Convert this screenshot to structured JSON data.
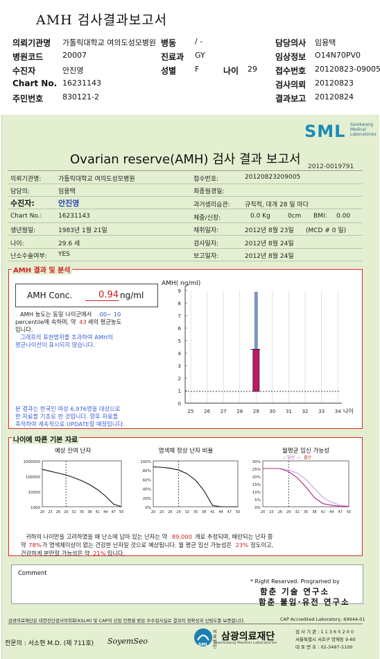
{
  "slip": {
    "title": "AMH 검사결과보고서",
    "rows": [
      {
        "l1": "의뢰기관명",
        "v1": "가톨릭대학교 여의도성모병원",
        "l2": "병동",
        "v2": "/ -",
        "l3": "",
        "v3": "",
        "l4": "담당의사",
        "v4": "임용택"
      },
      {
        "l1": "병원코드",
        "v1": "20007",
        "l2": "진료과",
        "v2": "GY",
        "l3": "",
        "v3": "",
        "l4": "임상정보",
        "v4": "O14N70PV0"
      },
      {
        "l1": "수진자",
        "v1": "안진영",
        "l2": "성별",
        "v2": "F",
        "l3": "나이",
        "v3": "29",
        "l4": "접수번호",
        "v4": "20120823-09005"
      },
      {
        "l1": "Chart No.",
        "v1": "16231143",
        "l2": "",
        "v2": "",
        "l3": "",
        "v3": "",
        "l4": "검사의뢰",
        "v4": "20120823"
      },
      {
        "l1": "주민번호",
        "v1": "830121-2",
        "l2": "",
        "v2": "",
        "l3": "",
        "v3": "",
        "l4": "결과보고",
        "v4": "20120824"
      }
    ]
  },
  "report": {
    "logo": "SML",
    "logo_sub": [
      "Samkwang",
      "Medical",
      "Laboratories"
    ],
    "title": "Ovarian reserve(AMH) 검사 결과 보고서",
    "doc_no": "2012-0019791",
    "patient_left": [
      {
        "label": "의뢰기관명:",
        "value": "가톨릭대학교 여의도성모병원",
        "big": false
      },
      {
        "label": "담당의:",
        "value": "임용택",
        "big": false
      },
      {
        "label": "수진자:",
        "value": "안진영",
        "big": true
      },
      {
        "label": "Chart No.:",
        "value": "16231143",
        "big": false
      },
      {
        "label": "생년월일:",
        "value": "1983년 1월 21일",
        "big": false
      },
      {
        "label": "나이:",
        "value": "29.6 세",
        "big": false
      },
      {
        "label": "난소수술여부:",
        "value": "YES",
        "big": false
      }
    ],
    "patient_right": {
      "receipt_label": "접수번호:",
      "receipt_value": "20120823209005",
      "final_menses_label": "최종월경일:",
      "final_menses_value": "",
      "cycle_label": "과거생리습관:",
      "cycle_value": "규칙적, 대개  28 일 마다",
      "body_label": "체중/신장:",
      "weight": "0.0 Kg",
      "height": "0cm",
      "bmi_label": "BMI:",
      "bmi": "0.00",
      "collect_label": "채취일자:",
      "collect_value": "2012년 8월 23일",
      "mcd": "(MCD #  0 일)",
      "test_label": "검사일자:",
      "test_value": "2012년 8월 24일",
      "report_label": "보고일자:",
      "report_value": "2012년 8월 24일"
    }
  },
  "amh_section": {
    "title": "AMH 결과 및 분석",
    "conc_label": "AMH Conc.",
    "conc_value": "0.94",
    "conc_unit": "ng/ml",
    "desc1_a": "AMH 농도는 동일 나이군에서",
    "desc1_range": ".00~  10",
    "desc2_a": "percentile에 속하며, 약",
    "desc2_age": "43",
    "desc2_b": "세의 평균농도",
    "desc3": "입니다.",
    "desc4": "그래프의 표현범위를 초과하여 AMH의",
    "desc5": "평균나이선이 표시되지 않습니다.",
    "note1": "본 결과는 한국인 여성 6,976명을 대상으로",
    "note2": "한 자료를 기초로 한 것입니다. 향후 자료를",
    "note3": "축적하여 계속적으로 UPDATE할 예정입니다."
  },
  "chart_data": [
    {
      "type": "bar",
      "title": "",
      "ylabel": "AMH( ng/ml)",
      "xlabel": "나이",
      "x": [
        25,
        26,
        27,
        28,
        29,
        30,
        31,
        32,
        33,
        34
      ],
      "ylim": [
        0,
        9
      ],
      "yticks": [
        0,
        1,
        2,
        3,
        4,
        5,
        6,
        7,
        8,
        9
      ],
      "bars": [
        {
          "x": 29,
          "low": 0.94,
          "high": 4.3,
          "color": "#c2186b"
        },
        {
          "x": 29,
          "low": 4.3,
          "high": 8.9,
          "color": "#7f93c4"
        }
      ],
      "reference_line": 0.94,
      "grid": true
    },
    {
      "type": "line",
      "title": "예상 잔여 난자",
      "x": [
        20,
        23,
        26,
        29,
        32,
        35,
        38,
        41,
        44,
        47,
        50
      ],
      "yscale": "log",
      "ylim": [
        1000,
        1000000
      ],
      "yticks": [
        "1000000",
        "100000",
        "10000",
        "1000"
      ],
      "series": [
        {
          "values": [
            280000,
            210000,
            160000,
            120000,
            80000,
            50000,
            28000,
            13000,
            5000,
            1500,
            1000
          ]
        }
      ],
      "marker_x": 29
    },
    {
      "type": "line",
      "title": "염색체 정상 난자 비율",
      "x": [
        20,
        23,
        26,
        29,
        32,
        35,
        38,
        41,
        44,
        47,
        50
      ],
      "ylim": [
        0,
        100
      ],
      "yticks": [
        "100%",
        "80%",
        "60%",
        "40%",
        "20%",
        "0%"
      ],
      "series": [
        {
          "values": [
            87,
            86,
            84,
            80,
            72,
            58,
            35,
            3,
            0,
            0,
            0
          ]
        }
      ],
      "marker_x": 29
    },
    {
      "type": "line",
      "title": "월평균 임신 가능성",
      "legend": [
        "임신",
        "출산"
      ],
      "x": [
        20,
        23,
        26,
        29,
        32,
        35,
        38,
        41,
        44,
        47,
        50
      ],
      "ylim": [
        0,
        30
      ],
      "yticks": [
        "30%",
        "25%",
        "20%",
        "15%",
        "10%",
        "5%",
        "0%"
      ],
      "series": [
        {
          "name": "임신",
          "values": [
            25,
            25,
            25,
            24,
            22,
            18,
            12,
            6,
            3,
            1,
            0.5
          ]
        },
        {
          "name": "출산",
          "values": [
            25,
            25,
            25,
            23,
            19,
            13,
            6,
            2,
            1,
            0.3,
            0.1
          ]
        }
      ],
      "marker_x": 29
    }
  ],
  "basic_section": {
    "title": "나이에 따른 기본 자료",
    "sum1_a": "귀하의 나이만을 고려하였을 때 난소에 남아 있는 난자는 약",
    "sum1_num": "89,000",
    "sum1_b": "개로 추정되며, 배란되는 난자 중",
    "sum2_a": "약",
    "sum2_pct": "78%",
    "sum2_b": "가 염색체이상이 없는 건강한 난자일 것으로 예상됩니다. 월 평균 임신 가능성은",
    "sum2_pct2": "23%",
    "sum2_c": "정도이고,",
    "sum3_a": "건강하게 분만할 가능성은 약",
    "sum3_pct": "21%",
    "sum3_b": "입니다."
  },
  "comment": {
    "label": "Comment"
  },
  "footer": {
    "rights": "* Right Reserved. Programed by",
    "lab1": "함춘 기술 연구소",
    "lab2": "함춘 불임·유전 연구소",
    "cert": "삼광의료재단은 대한진단검사의학회(KSLM) 및 CAP의 신임 인증을 받은 우수검사실로 결과의 정확성과 신빙도를 보증합니다.",
    "cap": "CAP  Accredited  Laboratory,  69944-01",
    "specialist": "전문의 : 서소현 M.D. (제 711호)",
    "signature": "SoyemSeo",
    "corp_prefix": "의료법인",
    "corp_name": "삼광의료재단",
    "corp_en": "Samkwang Medical Laboratories",
    "reg": "검 사 기 관 : 1 1 3 6 5 2 0 0",
    "addr": "서울특별시 서초구 양재동 9-60",
    "tel": "대 표 번 호 : 02-3497-5100"
  }
}
